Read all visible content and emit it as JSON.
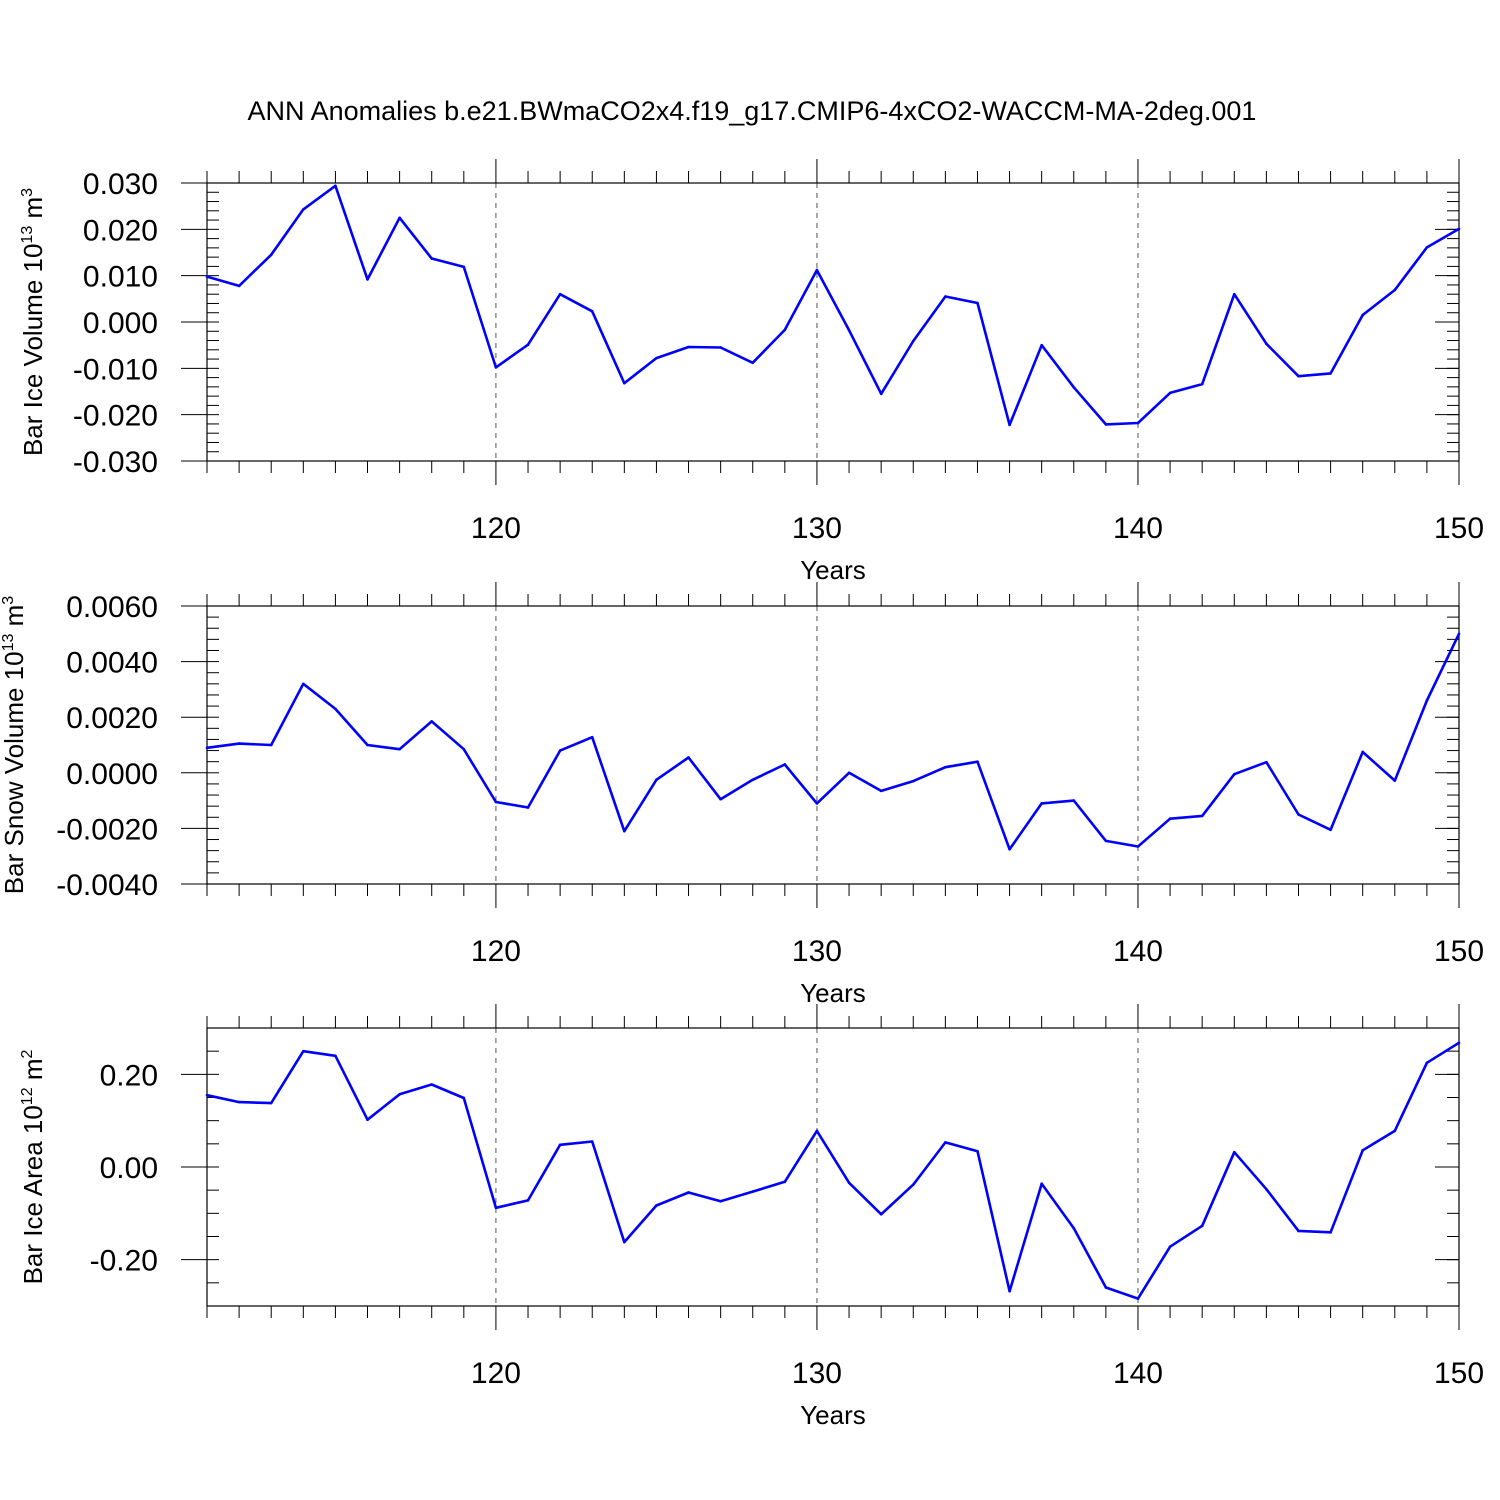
{
  "title": "ANN Anomalies b.e21.BWmaCO2x4.f19_g17.CMIP6-4xCO2-WACCM-MA-2deg.001",
  "line_color": "#0000ff",
  "chart_data": [
    {
      "type": "line",
      "name": "bar-ice-volume",
      "ylabel": {
        "text": "Bar Ice Volume 10",
        "exp": "13",
        "unit_text": " m",
        "unit_exp": "3"
      },
      "xlabel": "Years",
      "xlim": [
        111,
        150
      ],
      "ylim": [
        -0.03,
        0.03
      ],
      "x_ticks": [
        120,
        130,
        140,
        150
      ],
      "y_ticks": [
        -0.03,
        -0.02,
        -0.01,
        0.0,
        0.01,
        0.02,
        0.03
      ],
      "y_tick_labels": [
        "-0.030",
        "-0.020",
        "-0.010",
        "0.000",
        "0.010",
        "0.020",
        "0.030"
      ],
      "y_minor_step": 0.002,
      "grid_x": [
        120,
        130,
        140
      ],
      "x": [
        111,
        112,
        113,
        114,
        115,
        116,
        117,
        118,
        119,
        120,
        121,
        122,
        123,
        124,
        125,
        126,
        127,
        128,
        129,
        130,
        131,
        132,
        133,
        134,
        135,
        136,
        137,
        138,
        139,
        140,
        141,
        142,
        143,
        144,
        145,
        146,
        147,
        148,
        149,
        150
      ],
      "values": [
        0.0098,
        0.0078,
        0.0145,
        0.0243,
        0.0294,
        0.0092,
        0.0225,
        0.0137,
        0.0119,
        -0.0098,
        -0.0049,
        0.006,
        0.0023,
        -0.0132,
        -0.0078,
        -0.0054,
        -0.0055,
        -0.0088,
        -0.0017,
        0.0112,
        -0.0018,
        -0.0155,
        -0.0041,
        0.0055,
        0.0041,
        -0.0222,
        -0.005,
        -0.0141,
        -0.0221,
        -0.0218,
        -0.0153,
        -0.0134,
        0.006,
        -0.0047,
        -0.0117,
        -0.0111,
        0.0015,
        0.0069,
        0.0161,
        0.0201
      ]
    },
    {
      "type": "line",
      "name": "bar-snow-volume",
      "ylabel": {
        "text": "Bar Snow Volume 10",
        "exp": "13",
        "unit_text": " m",
        "unit_exp": "3"
      },
      "xlabel": "Years",
      "xlim": [
        111,
        150
      ],
      "ylim": [
        -0.004,
        0.006
      ],
      "x_ticks": [
        120,
        130,
        140,
        150
      ],
      "y_ticks": [
        -0.004,
        -0.002,
        0.0,
        0.002,
        0.004,
        0.006
      ],
      "y_tick_labels": [
        "-0.0040",
        "-0.0020",
        "0.0000",
        "0.0020",
        "0.0040",
        "0.0060"
      ],
      "y_minor_step": 0.0004,
      "grid_x": [
        120,
        130,
        140
      ],
      "x": [
        111,
        112,
        113,
        114,
        115,
        116,
        117,
        118,
        119,
        120,
        121,
        122,
        123,
        124,
        125,
        126,
        127,
        128,
        129,
        130,
        131,
        132,
        133,
        134,
        135,
        136,
        137,
        138,
        139,
        140,
        141,
        142,
        143,
        144,
        145,
        146,
        147,
        148,
        149,
        150
      ],
      "values": [
        0.0009,
        0.00105,
        0.001,
        0.0032,
        0.0023,
        0.001,
        0.00085,
        0.00185,
        0.00085,
        -0.00105,
        -0.00125,
        0.0008,
        0.00128,
        -0.0021,
        -0.00025,
        0.00055,
        -0.00095,
        -0.00025,
        0.0003,
        -0.0011,
        0.0,
        -0.00065,
        -0.0003,
        0.0002,
        0.0004,
        -0.00275,
        -0.0011,
        -0.001,
        -0.00245,
        -0.00265,
        -0.00165,
        -0.00155,
        -5e-05,
        0.00038,
        -0.0015,
        -0.00205,
        0.00075,
        -0.00028,
        0.0026,
        0.005
      ]
    },
    {
      "type": "line",
      "name": "bar-ice-area",
      "ylabel": {
        "text": "Bar Ice Area 10",
        "exp": "12",
        "unit_text": " m",
        "unit_exp": "2"
      },
      "xlabel": "Years",
      "xlim": [
        111,
        150
      ],
      "ylim": [
        -0.3,
        0.3
      ],
      "x_ticks": [
        120,
        130,
        140,
        150
      ],
      "y_ticks": [
        -0.2,
        0.0,
        0.2
      ],
      "y_tick_labels": [
        "-0.20",
        "0.00",
        "0.20"
      ],
      "y_minor_step": 0.05,
      "grid_x": [
        120,
        130,
        140
      ],
      "x": [
        111,
        112,
        113,
        114,
        115,
        116,
        117,
        118,
        119,
        120,
        121,
        122,
        123,
        124,
        125,
        126,
        127,
        128,
        129,
        130,
        131,
        132,
        133,
        134,
        135,
        136,
        137,
        138,
        139,
        140,
        141,
        142,
        143,
        144,
        145,
        146,
        147,
        148,
        149,
        150
      ],
      "values": [
        0.155,
        0.14,
        0.138,
        0.25,
        0.24,
        0.102,
        0.157,
        0.178,
        0.149,
        -0.088,
        -0.072,
        0.048,
        0.055,
        -0.162,
        -0.083,
        -0.055,
        -0.074,
        -0.053,
        -0.032,
        0.078,
        -0.034,
        -0.102,
        -0.038,
        0.053,
        0.034,
        -0.268,
        -0.036,
        -0.132,
        -0.26,
        -0.284,
        -0.172,
        -0.127,
        0.032,
        -0.048,
        -0.138,
        -0.141,
        0.036,
        0.078,
        0.225,
        0.268
      ]
    }
  ]
}
